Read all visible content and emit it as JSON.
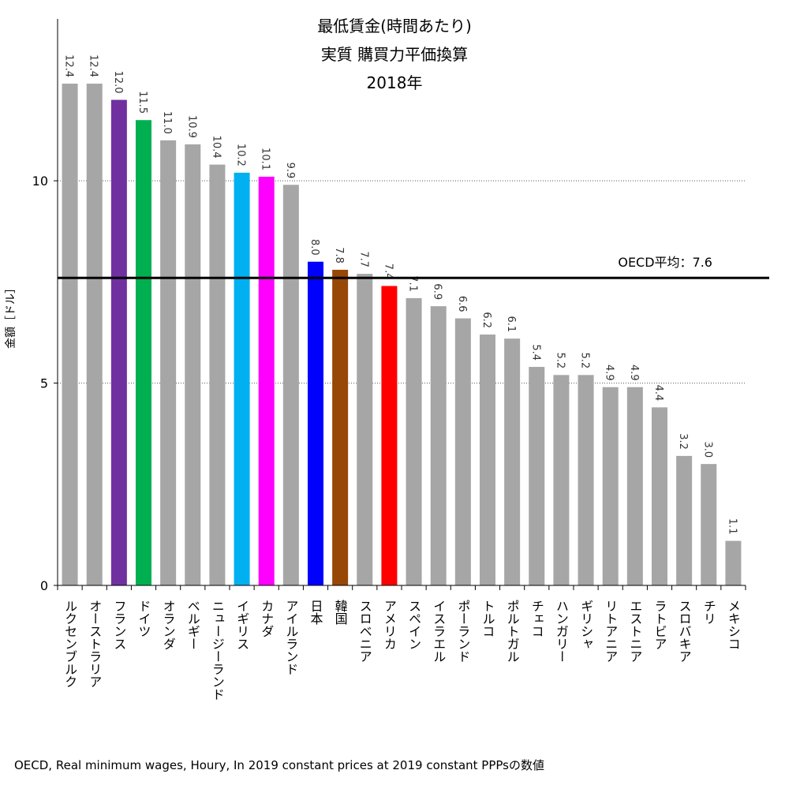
{
  "chart_data": {
    "type": "bar",
    "title_lines": [
      "最低賃金(時間あたり)",
      "実質 購買力平価換算",
      "2018年"
    ],
    "y_label": "金額［ドル］",
    "source": "OECD, Real minimum wages, Houry, In 2019 constant prices at 2019 constant PPPsの数値",
    "categories": [
      "ルクセンブルク",
      "オーストラリア",
      "フランス",
      "ドイツ",
      "オランダ",
      "ベルギー",
      "ニュージーランド",
      "イギリス",
      "カナダ",
      "アイルランド",
      "日本",
      "韓国",
      "スロベニア",
      "アメリカ",
      "スペイン",
      "イスラエル",
      "ポーランド",
      "トルコ",
      "ポルトガル",
      "チェコ",
      "ハンガリー",
      "ギリシャ",
      "リトアニア",
      "エストニア",
      "ラトビア",
      "スロバキア",
      "チリ",
      "メキシコ"
    ],
    "values": [
      12.4,
      12.4,
      12.0,
      11.5,
      11.0,
      10.9,
      10.4,
      10.2,
      10.1,
      9.9,
      8.0,
      7.8,
      7.7,
      7.4,
      7.1,
      6.9,
      6.6,
      6.2,
      6.1,
      5.4,
      5.2,
      5.2,
      4.9,
      4.9,
      4.4,
      3.2,
      3.0,
      1.1
    ],
    "value_labels": [
      "12.4",
      "12.4",
      "12.0",
      "11.5",
      "11.0",
      "10.9",
      "10.4",
      "10.2",
      "10.1",
      "9.9",
      "8.0",
      "7.8",
      "7.7",
      "7.4",
      "7.1",
      "6.9",
      "6.6",
      "6.2",
      "6.1",
      "5.4",
      "5.2",
      "5.2",
      "4.9",
      "4.9",
      "4.4",
      "3.2",
      "3.0",
      "1.1"
    ],
    "colors": [
      "#a6a6a6",
      "#a6a6a6",
      "#7030a0",
      "#00b050",
      "#a6a6a6",
      "#a6a6a6",
      "#a6a6a6",
      "#00b0f0",
      "#ff00ff",
      "#a6a6a6",
      "#0000ff",
      "#974706",
      "#a6a6a6",
      "#ff0000",
      "#a6a6a6",
      "#a6a6a6",
      "#a6a6a6",
      "#a6a6a6",
      "#a6a6a6",
      "#a6a6a6",
      "#a6a6a6",
      "#a6a6a6",
      "#a6a6a6",
      "#a6a6a6",
      "#a6a6a6",
      "#a6a6a6",
      "#a6a6a6",
      "#a6a6a6"
    ],
    "ylim": [
      0,
      14
    ],
    "yticks": [
      0,
      5,
      10
    ],
    "grid": true,
    "reference_line": {
      "value": 7.6,
      "label": "OECD平均：7.6"
    }
  }
}
